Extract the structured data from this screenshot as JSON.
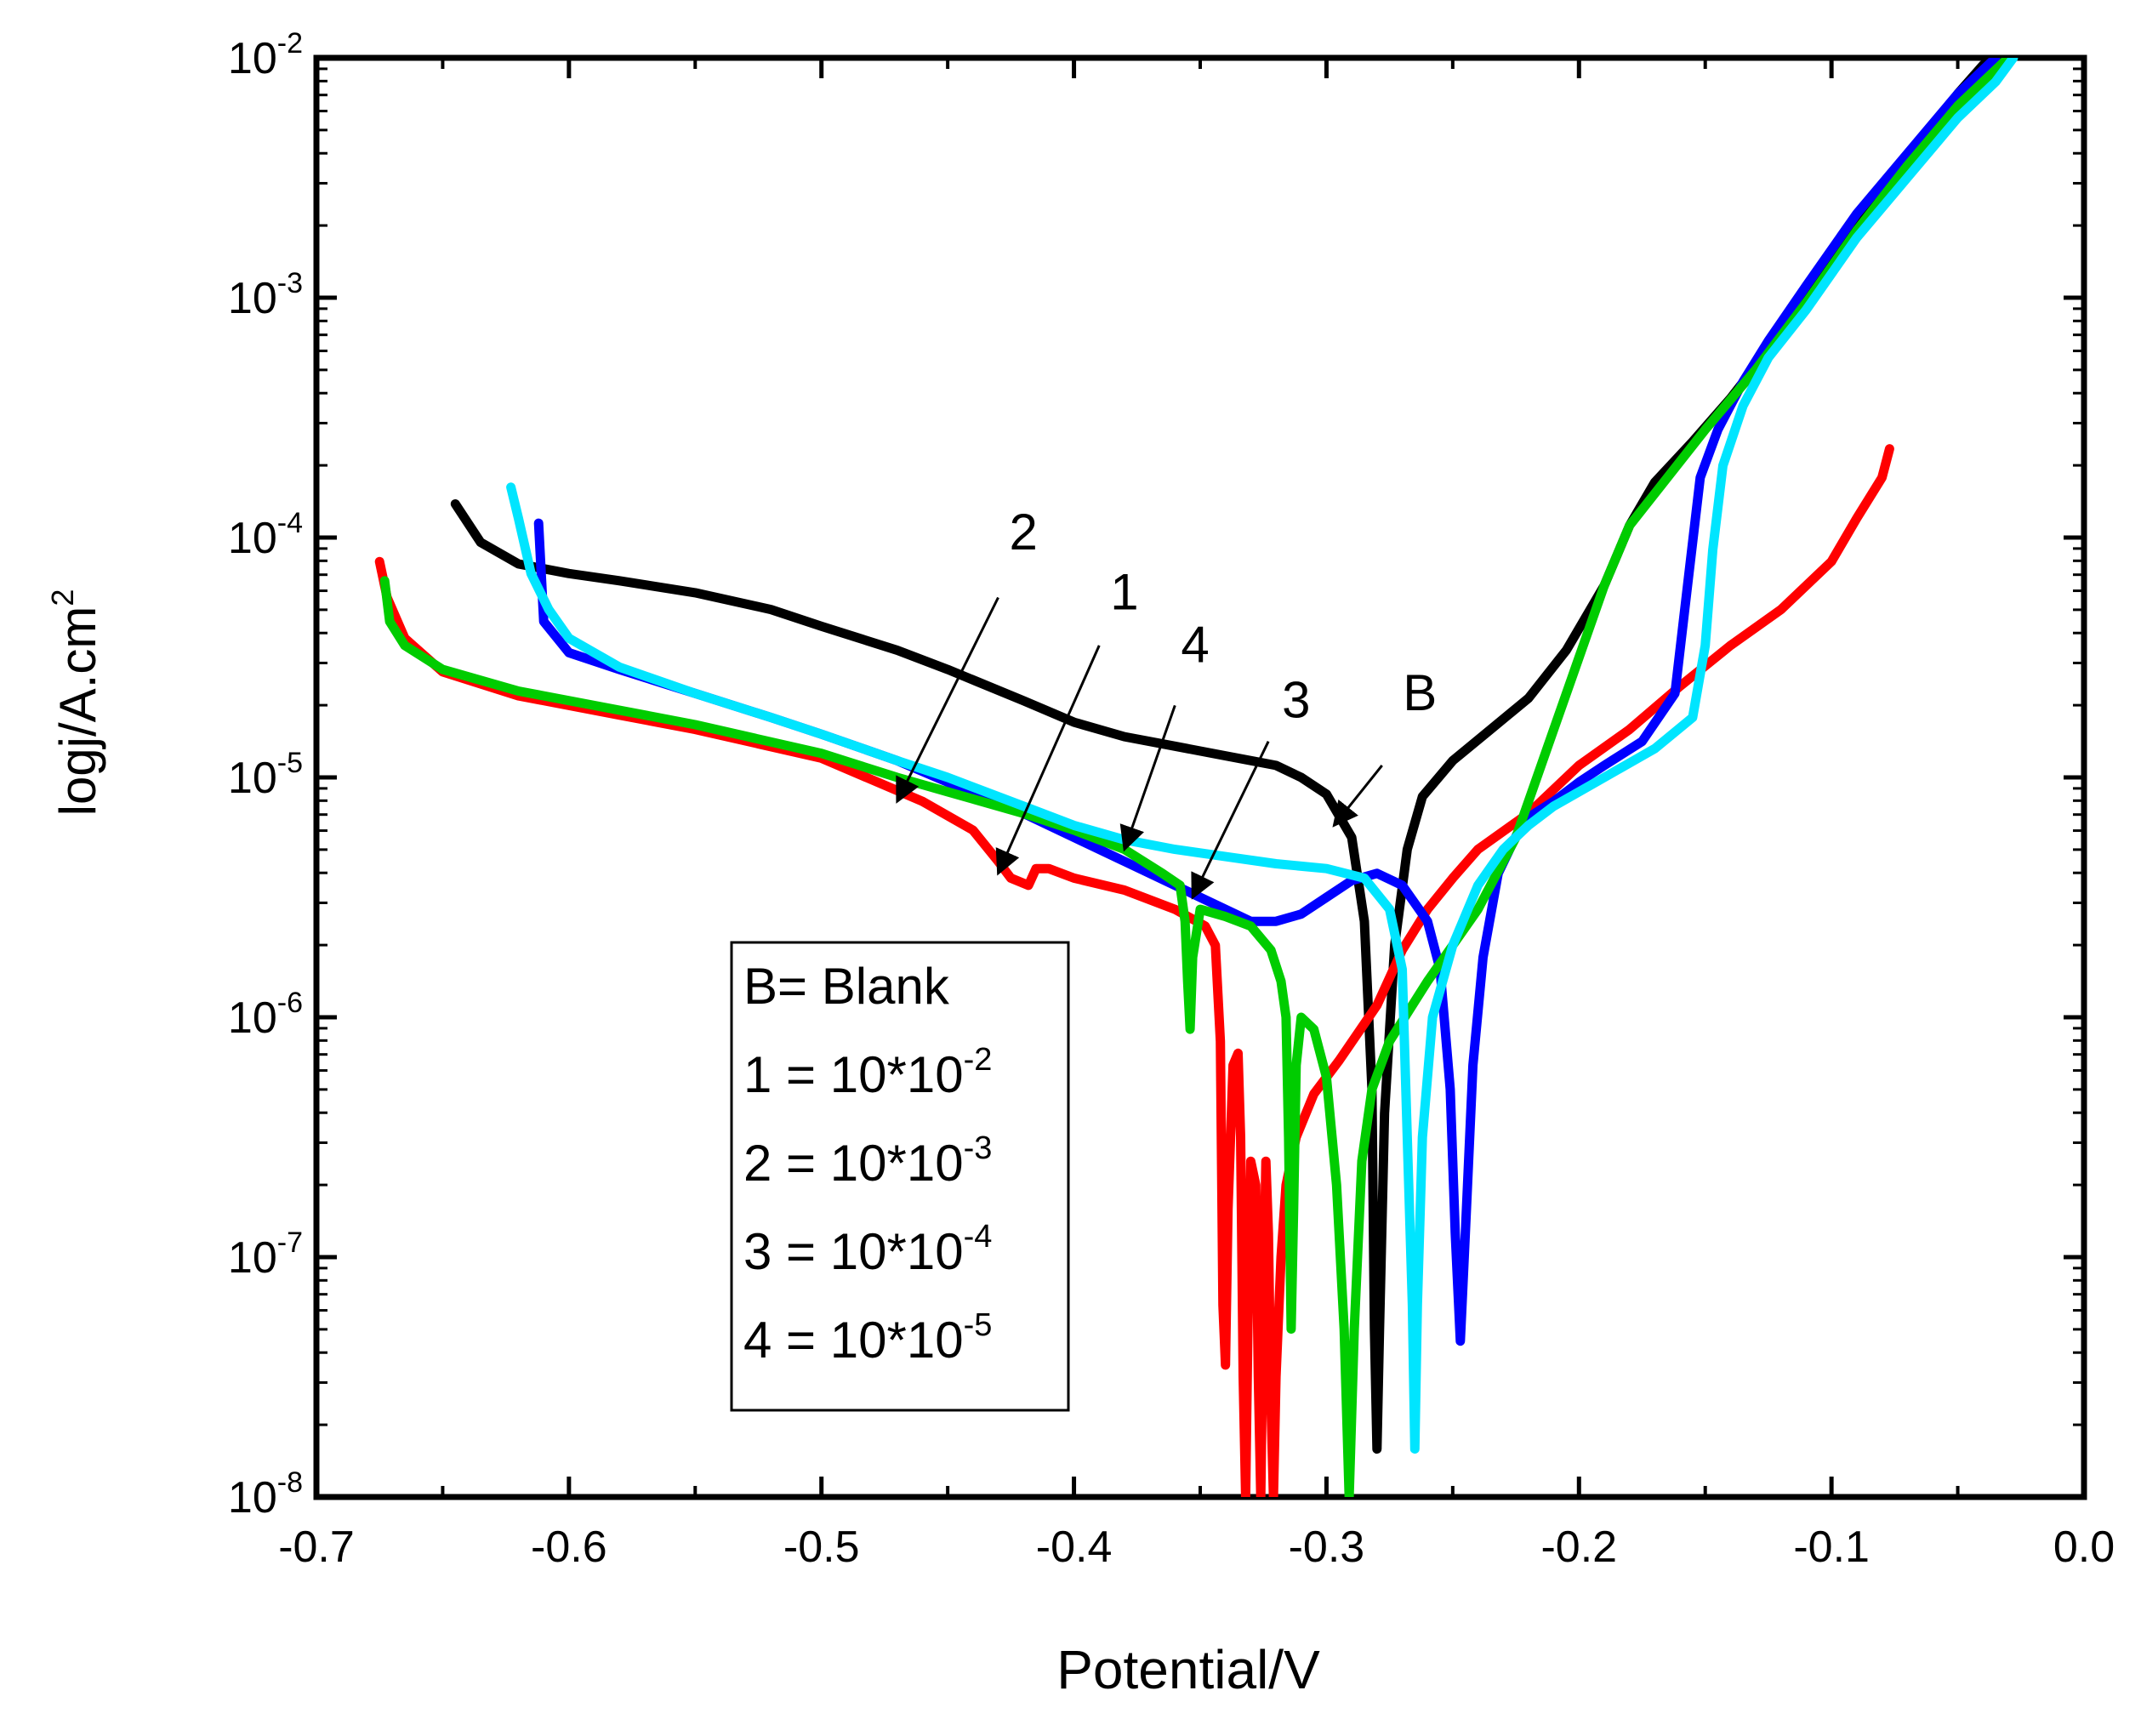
{
  "chart_data": {
    "type": "line",
    "title": "",
    "xlabel": "Potential/V",
    "ylabel_main": "logj/A.cm",
    "ylabel_sup": "2",
    "xlim": [
      -0.7,
      0.0
    ],
    "ylim_log10": [
      -8,
      -2
    ],
    "y_scale": "log",
    "x_ticks": [
      {
        "v": -0.7,
        "label": "-0.7"
      },
      {
        "v": -0.6,
        "label": "-0.6"
      },
      {
        "v": -0.5,
        "label": "-0.5"
      },
      {
        "v": -0.4,
        "label": "-0.4"
      },
      {
        "v": -0.3,
        "label": "-0.3"
      },
      {
        "v": -0.2,
        "label": "-0.2"
      },
      {
        "v": -0.1,
        "label": "-0.1"
      },
      {
        "v": 0.0,
        "label": "0.0"
      }
    ],
    "y_ticks": [
      {
        "exp": -2,
        "base": "10",
        "sup": "-2"
      },
      {
        "exp": -3,
        "base": "10",
        "sup": "-3"
      },
      {
        "exp": -4,
        "base": "10",
        "sup": "-4"
      },
      {
        "exp": -5,
        "base": "10",
        "sup": "-5"
      },
      {
        "exp": -6,
        "base": "10",
        "sup": "-6"
      },
      {
        "exp": -7,
        "base": "10",
        "sup": "-7"
      },
      {
        "exp": -8,
        "base": "10",
        "sup": "-8"
      }
    ],
    "legend": {
      "position": "lower-middle",
      "entries": [
        {
          "text": "B= Blank",
          "sup": ""
        },
        {
          "text": "1 = 10*10",
          "sup": "-2"
        },
        {
          "text": "2 = 10*10",
          "sup": "-3"
        },
        {
          "text": "3 = 10*10",
          "sup": "-4"
        },
        {
          "text": "4 = 10*10",
          "sup": "-5"
        }
      ]
    },
    "annotations": [
      {
        "label": "2",
        "text_x": -0.42,
        "text_y": -4.05,
        "arrow_from": [
          -0.43,
          -4.25
        ],
        "arrow_to": [
          -0.47,
          -5.1
        ]
      },
      {
        "label": "1",
        "text_x": -0.38,
        "text_y": -4.3,
        "arrow_from": [
          -0.39,
          -4.45
        ],
        "arrow_to": [
          -0.43,
          -5.4
        ]
      },
      {
        "label": "4",
        "text_x": -0.352,
        "text_y": -4.52,
        "arrow_from": [
          -0.36,
          -4.7
        ],
        "arrow_to": [
          -0.38,
          -5.3
        ]
      },
      {
        "label": "3",
        "text_x": -0.312,
        "text_y": -4.75,
        "arrow_from": [
          -0.323,
          -4.85
        ],
        "arrow_to": [
          -0.353,
          -5.5
        ]
      },
      {
        "label": "B",
        "text_x": -0.263,
        "text_y": -4.72,
        "arrow_from": [
          -0.278,
          -4.95
        ],
        "arrow_to": [
          -0.297,
          -5.2
        ]
      }
    ],
    "series": [
      {
        "name": "B",
        "color": "#000000",
        "points": [
          [
            -0.645,
            -3.86
          ],
          [
            -0.635,
            -4.02
          ],
          [
            -0.62,
            -4.11
          ],
          [
            -0.6,
            -4.15
          ],
          [
            -0.58,
            -4.18
          ],
          [
            -0.55,
            -4.23
          ],
          [
            -0.52,
            -4.3
          ],
          [
            -0.5,
            -4.37
          ],
          [
            -0.47,
            -4.47
          ],
          [
            -0.45,
            -4.55
          ],
          [
            -0.42,
            -4.68
          ],
          [
            -0.4,
            -4.77
          ],
          [
            -0.38,
            -4.83
          ],
          [
            -0.36,
            -4.87
          ],
          [
            -0.34,
            -4.91
          ],
          [
            -0.32,
            -4.95
          ],
          [
            -0.31,
            -5.0
          ],
          [
            -0.3,
            -5.07
          ],
          [
            -0.29,
            -5.25
          ],
          [
            -0.285,
            -5.6
          ],
          [
            -0.282,
            -6.3
          ],
          [
            -0.281,
            -7.3
          ],
          [
            -0.28,
            -7.8
          ],
          [
            -0.279,
            -7.3
          ],
          [
            -0.277,
            -6.4
          ],
          [
            -0.273,
            -5.7
          ],
          [
            -0.268,
            -5.3
          ],
          [
            -0.262,
            -5.08
          ],
          [
            -0.25,
            -4.93
          ],
          [
            -0.235,
            -4.8
          ],
          [
            -0.22,
            -4.67
          ],
          [
            -0.205,
            -4.47
          ],
          [
            -0.19,
            -4.2
          ],
          [
            -0.18,
            -3.95
          ],
          [
            -0.17,
            -3.77
          ],
          [
            -0.155,
            -3.6
          ],
          [
            -0.14,
            -3.42
          ],
          [
            -0.12,
            -3.15
          ],
          [
            -0.1,
            -2.85
          ],
          [
            -0.08,
            -2.57
          ],
          [
            -0.06,
            -2.3
          ],
          [
            -0.05,
            -2.15
          ],
          [
            -0.04,
            -2.03
          ],
          [
            -0.035,
            -2.0
          ]
        ]
      },
      {
        "name": "1",
        "color": "#ff0000",
        "points": [
          [
            -0.675,
            -4.1
          ],
          [
            -0.672,
            -4.25
          ],
          [
            -0.665,
            -4.42
          ],
          [
            -0.65,
            -4.56
          ],
          [
            -0.62,
            -4.66
          ],
          [
            -0.58,
            -4.74
          ],
          [
            -0.55,
            -4.8
          ],
          [
            -0.5,
            -4.92
          ],
          [
            -0.46,
            -5.1
          ],
          [
            -0.44,
            -5.22
          ],
          [
            -0.43,
            -5.35
          ],
          [
            -0.425,
            -5.42
          ],
          [
            -0.418,
            -5.45
          ],
          [
            -0.415,
            -5.38
          ],
          [
            -0.41,
            -5.38
          ],
          [
            -0.4,
            -5.42
          ],
          [
            -0.38,
            -5.47
          ],
          [
            -0.36,
            -5.55
          ],
          [
            -0.348,
            -5.62
          ],
          [
            -0.344,
            -5.7
          ],
          [
            -0.342,
            -6.1
          ],
          [
            -0.341,
            -7.2
          ],
          [
            -0.34,
            -7.45
          ],
          [
            -0.339,
            -6.8
          ],
          [
            -0.337,
            -6.2
          ],
          [
            -0.335,
            -6.15
          ],
          [
            -0.334,
            -6.5
          ],
          [
            -0.333,
            -7.5
          ],
          [
            -0.332,
            -8.0
          ],
          [
            -0.331,
            -7.2
          ],
          [
            -0.33,
            -6.6
          ],
          [
            -0.328,
            -6.7
          ],
          [
            -0.327,
            -7.5
          ],
          [
            -0.326,
            -8.0
          ],
          [
            -0.325,
            -7.2
          ],
          [
            -0.324,
            -6.6
          ],
          [
            -0.323,
            -6.9
          ],
          [
            -0.322,
            -7.6
          ],
          [
            -0.321,
            -8.0
          ],
          [
            -0.32,
            -7.5
          ],
          [
            -0.318,
            -7.0
          ],
          [
            -0.316,
            -6.7
          ],
          [
            -0.312,
            -6.5
          ],
          [
            -0.305,
            -6.32
          ],
          [
            -0.295,
            -6.18
          ],
          [
            -0.28,
            -5.95
          ],
          [
            -0.27,
            -5.72
          ],
          [
            -0.26,
            -5.55
          ],
          [
            -0.25,
            -5.42
          ],
          [
            -0.24,
            -5.3
          ],
          [
            -0.22,
            -5.15
          ],
          [
            -0.2,
            -4.95
          ],
          [
            -0.18,
            -4.8
          ],
          [
            -0.16,
            -4.62
          ],
          [
            -0.14,
            -4.45
          ],
          [
            -0.12,
            -4.3
          ],
          [
            -0.1,
            -4.1
          ],
          [
            -0.09,
            -3.92
          ],
          [
            -0.08,
            -3.75
          ],
          [
            -0.077,
            -3.63
          ]
        ]
      },
      {
        "name": "2",
        "color": "#0000ff",
        "points": [
          [
            -0.612,
            -3.94
          ],
          [
            -0.61,
            -4.35
          ],
          [
            -0.6,
            -4.48
          ],
          [
            -0.58,
            -4.55
          ],
          [
            -0.55,
            -4.65
          ],
          [
            -0.52,
            -4.75
          ],
          [
            -0.5,
            -4.82
          ],
          [
            -0.47,
            -4.93
          ],
          [
            -0.45,
            -5.02
          ],
          [
            -0.42,
            -5.15
          ],
          [
            -0.4,
            -5.25
          ],
          [
            -0.38,
            -5.35
          ],
          [
            -0.36,
            -5.45
          ],
          [
            -0.34,
            -5.55
          ],
          [
            -0.33,
            -5.6
          ],
          [
            -0.32,
            -5.6
          ],
          [
            -0.31,
            -5.57
          ],
          [
            -0.3,
            -5.5
          ],
          [
            -0.29,
            -5.43
          ],
          [
            -0.28,
            -5.4
          ],
          [
            -0.27,
            -5.45
          ],
          [
            -0.26,
            -5.6
          ],
          [
            -0.255,
            -5.8
          ],
          [
            -0.251,
            -6.3
          ],
          [
            -0.249,
            -6.9
          ],
          [
            -0.247,
            -7.35
          ],
          [
            -0.245,
            -6.9
          ],
          [
            -0.242,
            -6.2
          ],
          [
            -0.238,
            -5.75
          ],
          [
            -0.232,
            -5.4
          ],
          [
            -0.222,
            -5.18
          ],
          [
            -0.21,
            -5.1
          ],
          [
            -0.2,
            -5.02
          ],
          [
            -0.19,
            -4.95
          ],
          [
            -0.175,
            -4.85
          ],
          [
            -0.162,
            -4.65
          ],
          [
            -0.157,
            -4.2
          ],
          [
            -0.152,
            -3.75
          ],
          [
            -0.145,
            -3.55
          ],
          [
            -0.135,
            -3.35
          ],
          [
            -0.125,
            -3.18
          ],
          [
            -0.11,
            -2.95
          ],
          [
            -0.09,
            -2.65
          ],
          [
            -0.07,
            -2.4
          ],
          [
            -0.05,
            -2.15
          ],
          [
            -0.035,
            -2.0
          ]
        ]
      },
      {
        "name": "3",
        "color": "#00cc00",
        "points": [
          [
            -0.673,
            -4.18
          ],
          [
            -0.671,
            -4.35
          ],
          [
            -0.665,
            -4.45
          ],
          [
            -0.65,
            -4.55
          ],
          [
            -0.62,
            -4.64
          ],
          [
            -0.58,
            -4.72
          ],
          [
            -0.55,
            -4.78
          ],
          [
            -0.5,
            -4.9
          ],
          [
            -0.47,
            -5.0
          ],
          [
            -0.45,
            -5.06
          ],
          [
            -0.42,
            -5.15
          ],
          [
            -0.4,
            -5.22
          ],
          [
            -0.38,
            -5.3
          ],
          [
            -0.365,
            -5.4
          ],
          [
            -0.358,
            -5.45
          ],
          [
            -0.356,
            -5.6
          ],
          [
            -0.355,
            -5.85
          ],
          [
            -0.354,
            -6.05
          ],
          [
            -0.353,
            -5.75
          ],
          [
            -0.35,
            -5.55
          ],
          [
            -0.34,
            -5.58
          ],
          [
            -0.33,
            -5.62
          ],
          [
            -0.322,
            -5.72
          ],
          [
            -0.318,
            -5.85
          ],
          [
            -0.316,
            -6.0
          ],
          [
            -0.315,
            -6.5
          ],
          [
            -0.314,
            -7.3
          ],
          [
            -0.313,
            -6.8
          ],
          [
            -0.312,
            -6.2
          ],
          [
            -0.31,
            -6.0
          ],
          [
            -0.305,
            -6.05
          ],
          [
            -0.3,
            -6.25
          ],
          [
            -0.296,
            -6.7
          ],
          [
            -0.293,
            -7.3
          ],
          [
            -0.291,
            -8.0
          ],
          [
            -0.289,
            -7.3
          ],
          [
            -0.286,
            -6.6
          ],
          [
            -0.282,
            -6.3
          ],
          [
            -0.275,
            -6.1
          ],
          [
            -0.26,
            -5.85
          ],
          [
            -0.24,
            -5.55
          ],
          [
            -0.225,
            -5.25
          ],
          [
            -0.21,
            -4.8
          ],
          [
            -0.2,
            -4.5
          ],
          [
            -0.19,
            -4.2
          ],
          [
            -0.18,
            -3.95
          ],
          [
            -0.165,
            -3.75
          ],
          [
            -0.15,
            -3.55
          ],
          [
            -0.13,
            -3.3
          ],
          [
            -0.11,
            -3.02
          ],
          [
            -0.09,
            -2.72
          ],
          [
            -0.07,
            -2.45
          ],
          [
            -0.05,
            -2.2
          ],
          [
            -0.03,
            -2.0
          ]
        ]
      },
      {
        "name": "4",
        "color": "#00e5ff",
        "points": [
          [
            -0.623,
            -3.79
          ],
          [
            -0.62,
            -3.92
          ],
          [
            -0.615,
            -4.15
          ],
          [
            -0.608,
            -4.3
          ],
          [
            -0.6,
            -4.42
          ],
          [
            -0.58,
            -4.54
          ],
          [
            -0.55,
            -4.65
          ],
          [
            -0.52,
            -4.75
          ],
          [
            -0.5,
            -4.82
          ],
          [
            -0.47,
            -4.93
          ],
          [
            -0.45,
            -5.0
          ],
          [
            -0.42,
            -5.12
          ],
          [
            -0.4,
            -5.2
          ],
          [
            -0.38,
            -5.26
          ],
          [
            -0.36,
            -5.3
          ],
          [
            -0.34,
            -5.33
          ],
          [
            -0.32,
            -5.36
          ],
          [
            -0.3,
            -5.38
          ],
          [
            -0.285,
            -5.42
          ],
          [
            -0.275,
            -5.55
          ],
          [
            -0.27,
            -5.8
          ],
          [
            -0.268,
            -6.5
          ],
          [
            -0.266,
            -7.2
          ],
          [
            -0.265,
            -7.8
          ],
          [
            -0.264,
            -7.2
          ],
          [
            -0.262,
            -6.5
          ],
          [
            -0.258,
            -6.0
          ],
          [
            -0.25,
            -5.7
          ],
          [
            -0.24,
            -5.45
          ],
          [
            -0.23,
            -5.3
          ],
          [
            -0.22,
            -5.2
          ],
          [
            -0.21,
            -5.12
          ],
          [
            -0.19,
            -5.0
          ],
          [
            -0.17,
            -4.88
          ],
          [
            -0.155,
            -4.75
          ],
          [
            -0.15,
            -4.45
          ],
          [
            -0.147,
            -4.05
          ],
          [
            -0.143,
            -3.7
          ],
          [
            -0.135,
            -3.45
          ],
          [
            -0.125,
            -3.25
          ],
          [
            -0.11,
            -3.05
          ],
          [
            -0.09,
            -2.75
          ],
          [
            -0.07,
            -2.5
          ],
          [
            -0.05,
            -2.25
          ],
          [
            -0.035,
            -2.1
          ],
          [
            -0.028,
            -2.0
          ]
        ]
      }
    ]
  }
}
